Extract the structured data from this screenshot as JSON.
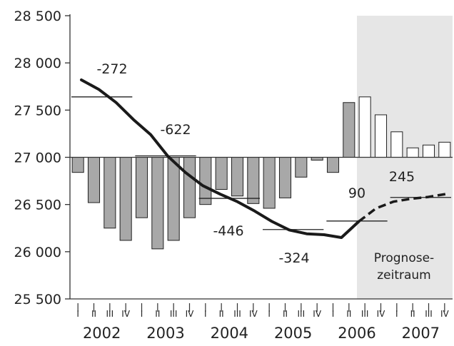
{
  "chart_data": {
    "type": "bar",
    "ylim": [
      25500,
      28500
    ],
    "baseline": 27000,
    "y_ticks": [
      {
        "value": 28500,
        "label": "28 500"
      },
      {
        "value": 28000,
        "label": "28 000"
      },
      {
        "value": 27500,
        "label": "27 500"
      },
      {
        "value": 27000,
        "label": "27 000"
      },
      {
        "value": 26500,
        "label": "26 500"
      },
      {
        "value": 26000,
        "label": "26 000"
      },
      {
        "value": 25500,
        "label": "25 500"
      }
    ],
    "quarters": [
      "I",
      "II",
      "III",
      "IV",
      "I",
      "II",
      "III",
      "IV",
      "I",
      "II",
      "III",
      "IV",
      "I",
      "II",
      "III",
      "IV",
      "I",
      "II",
      "III",
      "IV",
      "I",
      "II",
      "III",
      "IV"
    ],
    "years": [
      "2002",
      "2003",
      "2004",
      "2005",
      "2006",
      "2007"
    ],
    "bar_values": [
      26840,
      26520,
      26250,
      26120,
      26360,
      26030,
      26120,
      26360,
      26500,
      26660,
      26590,
      26510,
      26460,
      26570,
      26790,
      26970,
      26840,
      27580,
      27640,
      27450,
      27270,
      27100,
      27130,
      27160
    ],
    "bar_forecast": [
      false,
      false,
      false,
      false,
      false,
      false,
      false,
      false,
      false,
      false,
      false,
      false,
      false,
      false,
      false,
      false,
      false,
      false,
      true,
      true,
      true,
      true,
      true,
      true
    ],
    "line_values": [
      27820,
      27720,
      27580,
      27400,
      27240,
      27010,
      26840,
      26700,
      26610,
      26530,
      26430,
      26320,
      26230,
      26190,
      26180,
      26150,
      26320,
      26460,
      26530,
      26560,
      26580,
      26610
    ],
    "line_forecast_from_index": 16,
    "year_averages": [
      {
        "year": "2002",
        "value": 27640,
        "label": "-272"
      },
      {
        "year": "2003",
        "value": 27015,
        "label": "-622"
      },
      {
        "year": "2004",
        "value": 26565,
        "label": "-446"
      },
      {
        "year": "2005",
        "value": 26235,
        "label": "-324"
      },
      {
        "year": "2006",
        "value": 26325,
        "label": "90"
      },
      {
        "year": "2007",
        "value": 26575,
        "label": "245"
      }
    ],
    "forecast_label_line1": "Prognose-",
    "forecast_label_line2": "zeitraum",
    "colors": {
      "bar_actual": "#a8a8a8",
      "bar_forecast": "#ffffff",
      "line": "#1a1a1a",
      "forecast_shade": "#e6e6e6",
      "axis": "#333333"
    }
  }
}
